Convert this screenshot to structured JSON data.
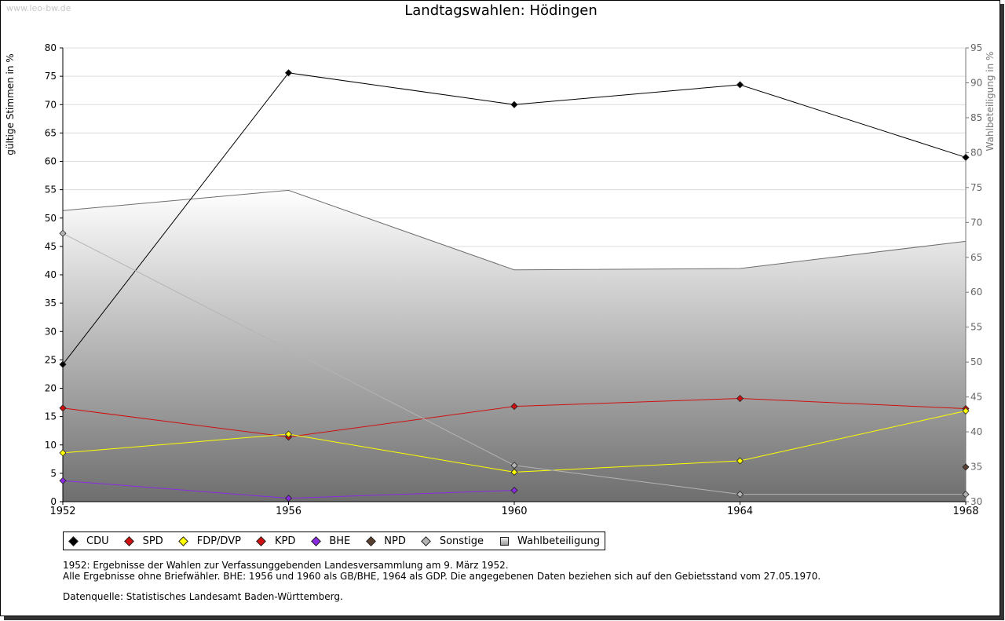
{
  "watermark": "www.leo-bw.de",
  "chart_data": {
    "type": "line",
    "title": "Landtagswahlen: Hödingen",
    "ylabel": "gültige Stimmen in %",
    "y2label": "Wahlbeteiligung in %",
    "ylim": [
      0,
      80
    ],
    "y2lim": [
      30,
      95
    ],
    "yticks": [
      0,
      5,
      10,
      15,
      20,
      25,
      30,
      35,
      40,
      45,
      50,
      55,
      60,
      65,
      70,
      75,
      80
    ],
    "y2ticks": [
      30,
      35,
      40,
      45,
      50,
      55,
      60,
      65,
      70,
      75,
      80,
      85,
      90,
      95
    ],
    "x": [
      1952,
      1956,
      1960,
      1964,
      1968
    ],
    "grid": true,
    "legend_position": "bottom",
    "series": [
      {
        "name": "CDU",
        "color": "#000000",
        "values": [
          24.2,
          75.6,
          70.0,
          73.5,
          60.7
        ]
      },
      {
        "name": "SPD",
        "color": "#d01010",
        "values": [
          16.5,
          11.4,
          16.8,
          18.2,
          16.4
        ]
      },
      {
        "name": "FDP/DVP",
        "color": "#ffff00",
        "values": [
          8.6,
          11.9,
          5.2,
          7.2,
          16.0
        ]
      },
      {
        "name": "KPD",
        "color": "#d01010",
        "values": [
          null,
          null,
          null,
          null,
          null
        ]
      },
      {
        "name": "BHE",
        "color": "#8a2be2",
        "values": [
          3.7,
          0.6,
          2.0,
          null,
          null
        ]
      },
      {
        "name": "NPD",
        "color": "#5a4030",
        "values": [
          null,
          null,
          null,
          null,
          6.1
        ]
      },
      {
        "name": "Sonstige",
        "color": "#b4b4b4",
        "values": [
          47.3,
          null,
          6.4,
          1.3,
          1.3
        ]
      }
    ],
    "turnout": {
      "name": "Wahlbeteiligung",
      "axis": "right",
      "values": [
        71.7,
        74.6,
        63.2,
        63.4,
        67.3
      ]
    }
  },
  "notes": {
    "line1": "1952: Ergebnisse der Wahlen zur Verfassunggebenden Landesversammlung am 9. März 1952.",
    "line2": "Alle Ergebnisse ohne Briefwähler. BHE: 1956 und 1960 als GB/BHE, 1964 als GDP. Die angegebenen Daten beziehen sich auf den Gebietsstand vom 27.05.1970.",
    "source": "Datenquelle: Statistisches Landesamt Baden-Württemberg."
  }
}
